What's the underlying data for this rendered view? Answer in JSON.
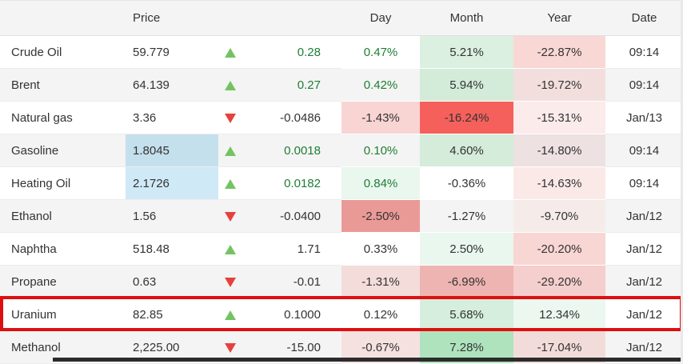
{
  "table": {
    "headers": {
      "name": "",
      "price": "Price",
      "arrow": "",
      "change": "",
      "day": "Day",
      "month": "Month",
      "year": "Year",
      "date": "Date"
    },
    "rows": [
      {
        "name": "Crude Oil",
        "price": "59.779",
        "price_bg": "",
        "direction": "up",
        "change": "0.28",
        "change_color": "#1e7e34",
        "day": "0.47%",
        "day_color": "#1e7e34",
        "day_bg": "",
        "month": "5.21%",
        "month_bg": "#dbf0e0",
        "year": "-22.87%",
        "year_bg": "#f8d7d5",
        "date": "09:14",
        "highlight": false
      },
      {
        "name": "Brent",
        "price": "64.139",
        "price_bg": "",
        "direction": "up",
        "change": "0.27",
        "change_color": "#1e7e34",
        "day": "0.42%",
        "day_color": "#1e7e34",
        "day_bg": "",
        "month": "5.94%",
        "month_bg": "#d3ecd9",
        "year": "-19.72%",
        "year_bg": "#f2dfdd",
        "date": "09:14",
        "highlight": false
      },
      {
        "name": "Natural gas",
        "price": "3.36",
        "price_bg": "",
        "direction": "down",
        "change": "-0.0486",
        "change_color": "#333333",
        "day": "-1.43%",
        "day_color": "#333333",
        "day_bg": "#f8d4d3",
        "month": "-16.24%",
        "month_bg": "#f5605c",
        "year": "-15.31%",
        "year_bg": "#fcebeb",
        "date": "Jan/13",
        "highlight": false
      },
      {
        "name": "Gasoline",
        "price": "1.8045",
        "price_bg": "#c4e0ec",
        "direction": "up",
        "change": "0.0018",
        "change_color": "#1e7e34",
        "day": "0.10%",
        "day_color": "#1e7e34",
        "day_bg": "",
        "month": "4.60%",
        "month_bg": "#d4ecd9",
        "year": "-14.80%",
        "year_bg": "#eee1e1",
        "date": "09:14",
        "highlight": false
      },
      {
        "name": "Heating Oil",
        "price": "2.1726",
        "price_bg": "#d0e9f6",
        "direction": "up",
        "change": "0.0182",
        "change_color": "#1e7e34",
        "day": "0.84%",
        "day_color": "#1e7e34",
        "day_bg": "#e9f7ee",
        "month": "-0.36%",
        "month_bg": "#ffffff",
        "year": "-14.63%",
        "year_bg": "#fbe9e8",
        "date": "09:14",
        "highlight": false
      },
      {
        "name": "Ethanol",
        "price": "1.56",
        "price_bg": "",
        "direction": "down",
        "change": "-0.0400",
        "change_color": "#333333",
        "day": "-2.50%",
        "day_color": "#333333",
        "day_bg": "#ea9a96",
        "month": "-1.27%",
        "month_bg": "",
        "year": "-9.70%",
        "year_bg": "#f5ecea",
        "date": "Jan/12",
        "highlight": false
      },
      {
        "name": "Naphtha",
        "price": "518.48",
        "price_bg": "",
        "direction": "up",
        "change": "1.71",
        "change_color": "#333333",
        "day": "0.33%",
        "day_color": "#333333",
        "day_bg": "",
        "month": "2.50%",
        "month_bg": "#eaf7ee",
        "year": "-20.20%",
        "year_bg": "#f8d6d4",
        "date": "Jan/12",
        "highlight": false
      },
      {
        "name": "Propane",
        "price": "0.63",
        "price_bg": "",
        "direction": "down",
        "change": "-0.01",
        "change_color": "#333333",
        "day": "-1.31%",
        "day_color": "#333333",
        "day_bg": "#f3dcda",
        "month": "-6.99%",
        "month_bg": "#eeb4b1",
        "year": "-29.20%",
        "year_bg": "#f4cfcd",
        "date": "Jan/12",
        "highlight": false
      },
      {
        "name": "Uranium",
        "price": "82.85",
        "price_bg": "",
        "direction": "up",
        "change": "0.1000",
        "change_color": "#333333",
        "day": "0.12%",
        "day_color": "#333333",
        "day_bg": "",
        "month": "5.68%",
        "month_bg": "#d5eedd",
        "year": "12.34%",
        "year_bg": "#ebf7ef",
        "date": "Jan/12",
        "highlight": true
      },
      {
        "name": "Methanol",
        "price": "2,225.00",
        "price_bg": "",
        "direction": "down",
        "change": "-15.00",
        "change_color": "#333333",
        "day": "-0.67%",
        "day_color": "#333333",
        "day_bg": "#f4e1e0",
        "month": "7.28%",
        "month_bg": "#aee3bd",
        "year": "-17.04%",
        "year_bg": "#f2dcda",
        "date": "Jan/12",
        "highlight": false
      }
    ]
  },
  "colors": {
    "text": "#333333",
    "green_text": "#1e7e34",
    "up_arrow": "#74c363",
    "down_arrow": "#e6413c",
    "strong_red_bg": "#f5605c",
    "highlight_border": "#dd1010",
    "header_bg": "#f4f4f4",
    "alt_row_bg": "#f4f4f4",
    "price_flash_blue_1": "#c4e0ec",
    "price_flash_blue_2": "#d0e9f6",
    "bottom_bar": "#2b2b2b"
  }
}
